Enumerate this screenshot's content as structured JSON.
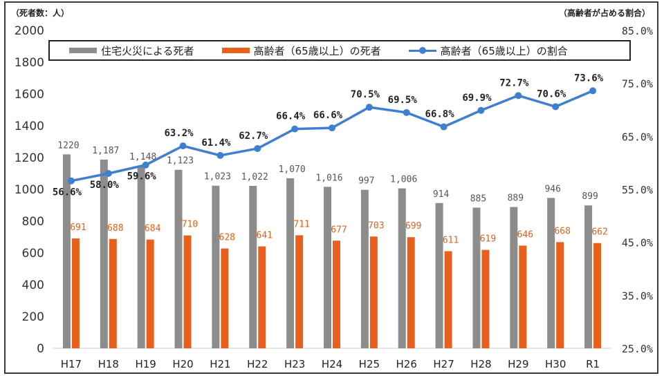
{
  "chart_data": {
    "type": "bar",
    "title": "",
    "left_axis_unit": "（死者数：人）",
    "right_axis_unit": "（高齢者が占める割合）",
    "categories": [
      "H17",
      "H18",
      "H19",
      "H20",
      "H21",
      "H22",
      "H23",
      "H24",
      "H25",
      "H26",
      "H27",
      "H28",
      "H29",
      "H30",
      "R1"
    ],
    "ylim": [
      0,
      2000
    ],
    "yticks": [
      "0",
      "200",
      "400",
      "600",
      "800",
      "1000",
      "1200",
      "1400",
      "1600",
      "1800",
      "2000"
    ],
    "y2lim": [
      25,
      85
    ],
    "y2ticks": [
      "25.0%",
      "35.0%",
      "45.0%",
      "55.0%",
      "65.0%",
      "75.0%",
      "85.0%"
    ],
    "series": [
      {
        "name": "住宅火災による死者",
        "kind": "bar",
        "color": "#8c8c8c",
        "values": [
          1220,
          1187,
          1148,
          1123,
          1023,
          1022,
          1070,
          1016,
          997,
          1006,
          914,
          885,
          889,
          946,
          899
        ],
        "labels": [
          "1220",
          "1,187",
          "1,148",
          "1,123",
          "1,023",
          "1,022",
          "1,070",
          "1,016",
          "997",
          "1,006",
          "914",
          "885",
          "889",
          "946",
          "899"
        ]
      },
      {
        "name": "高齢者（65歳以上）の死者",
        "kind": "bar",
        "color": "#e8601c",
        "values": [
          691,
          688,
          684,
          710,
          628,
          641,
          711,
          677,
          703,
          699,
          611,
          619,
          646,
          668,
          662
        ],
        "labels": [
          "691",
          "688",
          "684",
          "710",
          "628",
          "641",
          "711",
          "677",
          "703",
          "699",
          "611",
          "619",
          "646",
          "668",
          "662"
        ]
      },
      {
        "name": "高齢者（65歳以上）の割合",
        "kind": "line",
        "axis": "right",
        "color": "#3f7fd0",
        "values": [
          56.6,
          58.0,
          59.6,
          63.2,
          61.4,
          62.7,
          66.4,
          66.6,
          70.5,
          69.5,
          66.8,
          69.9,
          72.7,
          70.6,
          73.6
        ],
        "labels": [
          "56.6%",
          "58.0%",
          "59.6%",
          "63.2%",
          "61.4%",
          "62.7%",
          "66.4%",
          "66.6%",
          "70.5%",
          "69.5%",
          "66.8%",
          "69.9%",
          "72.7%",
          "70.6%",
          "73.6%"
        ]
      }
    ],
    "legend": "top",
    "grid": false
  }
}
